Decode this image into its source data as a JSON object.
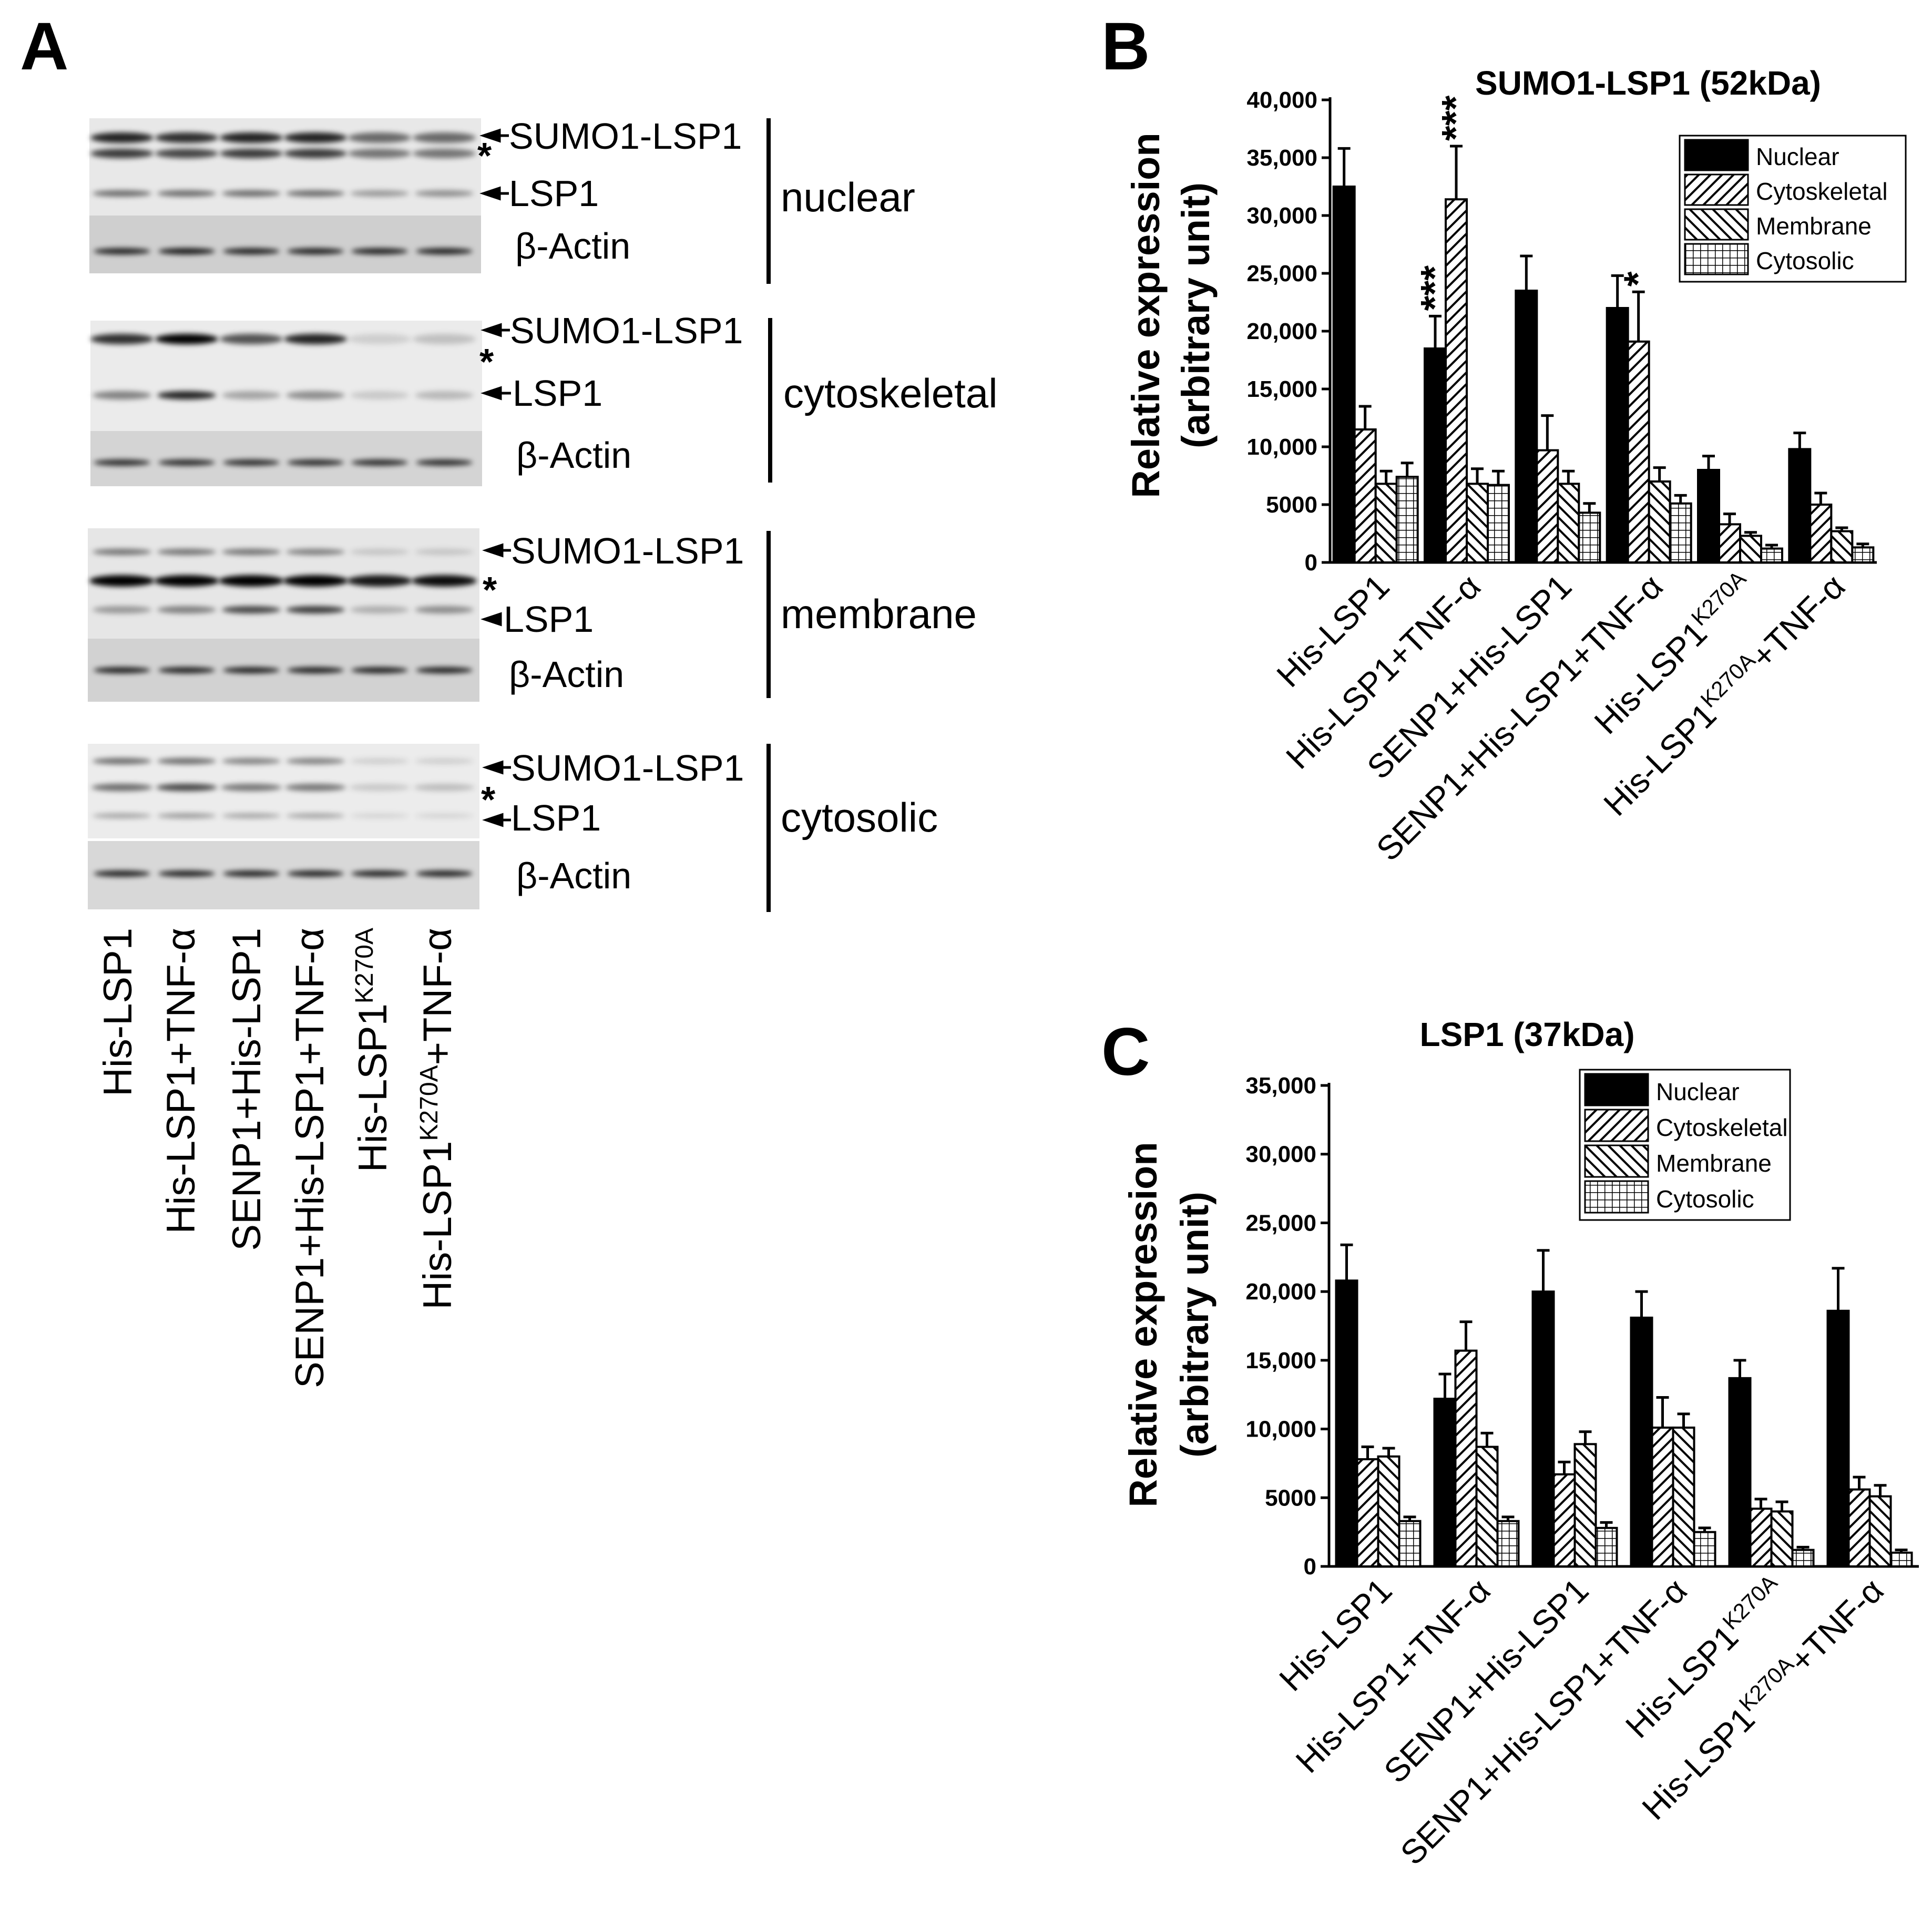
{
  "panel_a": {
    "letter": "A",
    "groups": [
      {
        "fraction": "nuclear",
        "bands": [
          "SUMO1-LSP1",
          "LSP1"
        ],
        "actin": "β-Actin",
        "star": "*"
      },
      {
        "fraction": "cytoskeletal",
        "bands": [
          "SUMO1-LSP1",
          "LSP1"
        ],
        "actin": "β-Actin",
        "star": "*"
      },
      {
        "fraction": "membrane",
        "bands": [
          "SUMO1-LSP1",
          "LSP1"
        ],
        "actin": "β-Actin",
        "star": "*"
      },
      {
        "fraction": "cytosolic",
        "bands": [
          "SUMO1-LSP1",
          "LSP1"
        ],
        "actin": "β-Actin",
        "star": "*"
      }
    ],
    "lanes": [
      {
        "main": "His-LSP1",
        "sup": "",
        "tail": ""
      },
      {
        "main": "His-LSP1+TNF-α",
        "sup": "",
        "tail": ""
      },
      {
        "main": "SENP1+His-LSP1",
        "sup": "",
        "tail": ""
      },
      {
        "main": "SENP1+His-LSP1+TNF-α",
        "sup": "",
        "tail": ""
      },
      {
        "main": "His-LSP1",
        "sup": "K270A",
        "tail": ""
      },
      {
        "main": "His-LSP1",
        "sup": "K270A",
        "tail": "+TNF-α"
      }
    ]
  },
  "chart_data": [
    {
      "panel": "B",
      "type": "bar",
      "title": "SUMO1-LSP1 (52kDa)",
      "ylabel_line1": "Relative expression",
      "ylabel_line2": "(arbitrary unit)",
      "ylim": [
        0,
        40000
      ],
      "yticks": [
        "0",
        "5000",
        "10,000",
        "15,000",
        "20,000",
        "25,000",
        "30,000",
        "35,000",
        "40,000"
      ],
      "categories": [
        {
          "main": "His-LSP1",
          "sup": "",
          "tail": ""
        },
        {
          "main": "His-LSP1+TNF-α",
          "sup": "",
          "tail": ""
        },
        {
          "main": "SENP1+His-LSP1",
          "sup": "",
          "tail": ""
        },
        {
          "main": "SENP1+His-LSP1+TNF-α",
          "sup": "",
          "tail": ""
        },
        {
          "main": "His-LSP1",
          "sup": "K270A",
          "tail": ""
        },
        {
          "main": "His-LSP1",
          "sup": "K270A",
          "tail": "+TNF-α"
        }
      ],
      "legend_position": "top-right",
      "series": [
        {
          "name": "Nuclear",
          "pattern": "solid",
          "values": [
            32500,
            18500,
            23500,
            22000,
            8000,
            9800
          ],
          "errors": [
            3300,
            2800,
            3000,
            2800,
            1200,
            1400
          ]
        },
        {
          "name": "Cytoskeletal",
          "pattern": "diag-up",
          "values": [
            11500,
            31400,
            9700,
            19100,
            3300,
            5000
          ],
          "errors": [
            2000,
            4600,
            3000,
            4300,
            900,
            1000
          ]
        },
        {
          "name": "Membrane",
          "pattern": "diag-down",
          "values": [
            6800,
            6800,
            6800,
            7000,
            2300,
            2700
          ],
          "errors": [
            1100,
            1300,
            1100,
            1200,
            300,
            300
          ]
        },
        {
          "name": "Cytosolic",
          "pattern": "grid",
          "values": [
            7400,
            6700,
            4300,
            5100,
            1200,
            1300
          ],
          "errors": [
            1200,
            1200,
            800,
            700,
            300,
            300
          ]
        }
      ],
      "annotations": [
        {
          "text": "***",
          "category": 1,
          "series": 0
        },
        {
          "text": "***",
          "category": 1,
          "series": 1
        },
        {
          "text": "*",
          "category": 3,
          "series": 1
        }
      ]
    },
    {
      "panel": "C",
      "type": "bar",
      "title": "LSP1 (37kDa)",
      "ylabel_line1": "Relative expression",
      "ylabel_line2": "(arbitrary unit)",
      "ylim": [
        0,
        35000
      ],
      "yticks": [
        "0",
        "5000",
        "10,000",
        "15,000",
        "20,000",
        "25,000",
        "30,000",
        "35,000"
      ],
      "categories": [
        {
          "main": "His-LSP1",
          "sup": "",
          "tail": ""
        },
        {
          "main": "His-LSP1+TNF-α",
          "sup": "",
          "tail": ""
        },
        {
          "main": "SENP1+His-LSP1",
          "sup": "",
          "tail": ""
        },
        {
          "main": "SENP1+His-LSP1+TNF-α",
          "sup": "",
          "tail": ""
        },
        {
          "main": "His-LSP1",
          "sup": "K270A",
          "tail": ""
        },
        {
          "main": "His-LSP1",
          "sup": "K270A",
          "tail": "+TNF-α"
        }
      ],
      "legend_position": "top-right",
      "series": [
        {
          "name": "Nuclear",
          "pattern": "solid",
          "values": [
            20800,
            12200,
            20000,
            18100,
            13700,
            18600
          ],
          "errors": [
            2600,
            1800,
            3000,
            1900,
            1300,
            3100
          ]
        },
        {
          "name": "Cytoskeletal",
          "pattern": "diag-up",
          "values": [
            7800,
            15700,
            6700,
            10100,
            4200,
            5600
          ],
          "errors": [
            900,
            2100,
            900,
            2200,
            700,
            900
          ]
        },
        {
          "name": "Membrane",
          "pattern": "diag-down",
          "values": [
            8000,
            8700,
            8900,
            10100,
            4000,
            5100
          ],
          "errors": [
            600,
            1000,
            900,
            1000,
            700,
            800
          ]
        },
        {
          "name": "Cytosolic",
          "pattern": "grid",
          "values": [
            3300,
            3300,
            2800,
            2500,
            1200,
            1000
          ],
          "errors": [
            300,
            300,
            400,
            300,
            200,
            200
          ]
        }
      ],
      "annotations": []
    }
  ]
}
